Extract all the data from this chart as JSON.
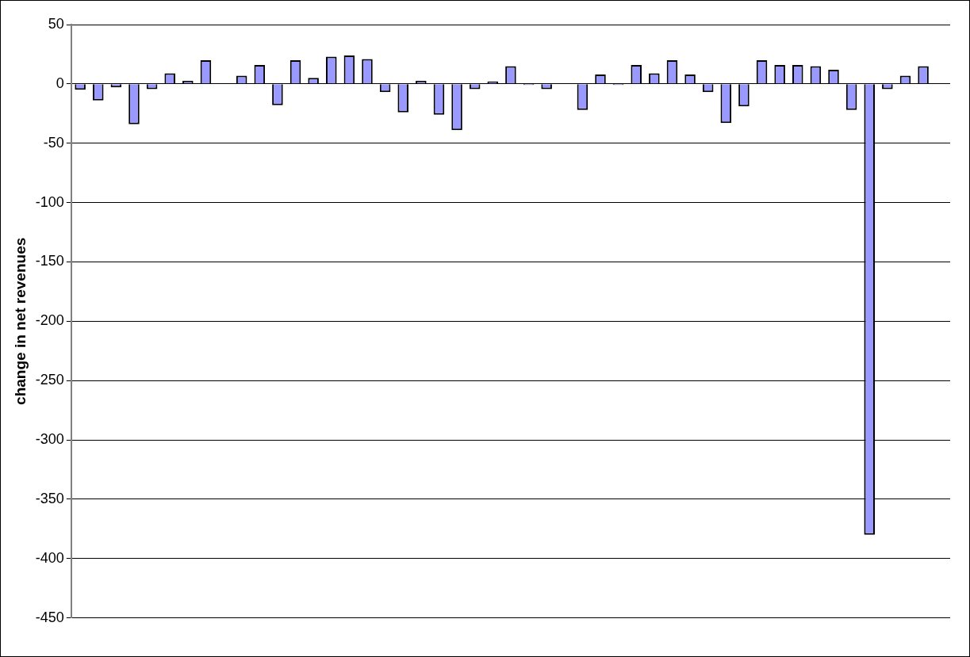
{
  "chart_data": {
    "type": "bar",
    "ylabel": "change in net revenues",
    "categories": [
      null,
      null,
      null,
      null,
      null,
      null,
      null,
      null,
      null,
      null,
      null,
      null,
      null,
      null,
      null,
      null,
      null,
      null,
      null,
      null,
      null,
      null,
      null,
      null,
      null,
      null,
      null,
      null,
      null,
      null,
      null,
      null,
      null,
      null,
      null,
      null,
      null,
      null,
      null,
      null,
      null,
      null,
      null,
      null,
      null,
      null,
      null,
      null,
      null
    ],
    "series": [
      {
        "color": "#9999ff",
        "values": [
          -5,
          -14,
          -3,
          -34,
          -4.5,
          9,
          2.5,
          20,
          0,
          7,
          16,
          -18,
          20,
          5,
          23,
          24,
          21,
          -7,
          -24,
          2.5,
          -26,
          -39,
          -4.5,
          2,
          15,
          -1,
          -4.5,
          0,
          -22,
          8,
          -1,
          16,
          9,
          20,
          8,
          -7,
          -33,
          -19,
          20,
          16,
          16,
          15,
          12,
          -22,
          -380,
          -4.5,
          7,
          15,
          0
        ]
      }
    ],
    "ylim": [
      -450,
      50
    ],
    "yticks": [
      -450,
      -400,
      -350,
      -300,
      -250,
      -200,
      -150,
      -100,
      -50,
      0,
      50
    ],
    "grid": "y",
    "legend": false
  }
}
